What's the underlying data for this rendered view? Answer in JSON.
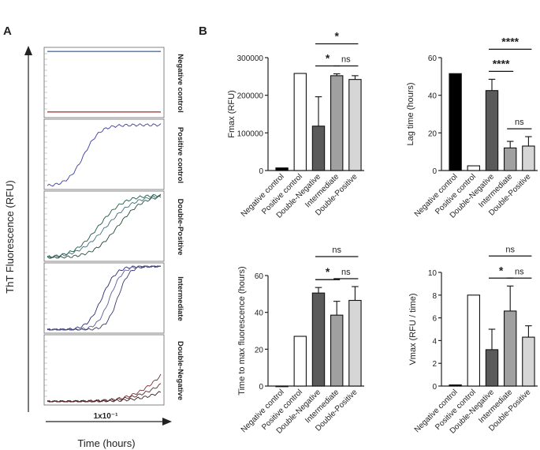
{
  "figure": {
    "panel_a_label": "A",
    "panel_b_label": "B",
    "ylabel_a": "ThT Fluorescence (RFU)",
    "xlabel_a": "Time (hours)",
    "scale_label": "1x10⁻¹"
  },
  "panel_a": {
    "samples": [
      {
        "label": "Negative control",
        "curve_colors": [
          "#b03a3a",
          "#4a6fb0"
        ]
      },
      {
        "label": "Positive control",
        "curve_colors": [
          "#3d3d9e"
        ]
      },
      {
        "label": "Double-Positive",
        "curve_colors": [
          "#1f5b4a",
          "#3e6e7a",
          "#244a3a"
        ]
      },
      {
        "label": "Intermediate",
        "curve_colors": [
          "#2c2c7a",
          "#5c5ca0",
          "#3a3a6a"
        ]
      },
      {
        "label": "Double-Negative",
        "curve_colors": [
          "#7a2f3a",
          "#5a2a2a",
          "#3a2020"
        ]
      }
    ]
  },
  "chart_data": [
    {
      "type": "bar",
      "id": "fmax",
      "title": "",
      "ylabel": "Fmax (RFU)",
      "categories": [
        "Negative control",
        "Positive control",
        "Double-Negative",
        "Intermediate",
        "Double-Positive"
      ],
      "values": [
        7000,
        258000,
        118000,
        252000,
        242000
      ],
      "errors": [
        0,
        0,
        78000,
        5000,
        10000
      ],
      "fills": [
        "#000000",
        "#ffffff",
        "#5a5a5a",
        "#a0a0a0",
        "#d6d6d6"
      ],
      "ylim": [
        0,
        300000
      ],
      "yticks": [
        0,
        100000,
        200000,
        300000
      ],
      "significance": [
        {
          "from": 2,
          "to": 3,
          "label": "*"
        },
        {
          "from": 3,
          "to": 4,
          "label": "ns"
        },
        {
          "from": 2,
          "to": 4,
          "label": "*"
        }
      ]
    },
    {
      "type": "bar",
      "id": "lag",
      "title": "",
      "ylabel": "Lag time (hours)",
      "categories": [
        "Negative control",
        "Positive control",
        "Double-Negative",
        "Intermediate",
        "Double-Positive"
      ],
      "values": [
        51.5,
        2.5,
        42.5,
        12,
        13
      ],
      "errors": [
        0,
        0,
        6,
        3.5,
        5
      ],
      "fills": [
        "#000000",
        "#ffffff",
        "#5a5a5a",
        "#a0a0a0",
        "#d6d6d6"
      ],
      "ylim": [
        0,
        60
      ],
      "yticks": [
        0,
        20,
        40,
        60
      ],
      "significance": [
        {
          "from": 2,
          "to": 3,
          "label": "****"
        },
        {
          "from": 3,
          "to": 4,
          "label": "ns"
        },
        {
          "from": 2,
          "to": 4,
          "label": "****"
        }
      ]
    },
    {
      "type": "bar",
      "id": "tmax",
      "title": "",
      "ylabel": "Time to max fluorescence (hours)",
      "categories": [
        "Negative control",
        "Positive control",
        "Double-Negative",
        "Intermediate",
        "Double-Positive"
      ],
      "values": [
        0,
        27,
        50.5,
        38.5,
        46.5
      ],
      "errors": [
        0,
        0,
        3,
        7.5,
        7.5
      ],
      "fills": [
        "#000000",
        "#ffffff",
        "#5a5a5a",
        "#a0a0a0",
        "#d6d6d6"
      ],
      "ylim": [
        0,
        60
      ],
      "yticks": [
        0,
        20,
        40,
        60
      ],
      "significance": [
        {
          "from": 2,
          "to": 3,
          "label": "*"
        },
        {
          "from": 3,
          "to": 4,
          "label": "ns"
        },
        {
          "from": 2,
          "to": 4,
          "label": "ns"
        }
      ]
    },
    {
      "type": "bar",
      "id": "vmax",
      "title": "",
      "ylabel": "Vmax (RFU / time)",
      "categories": [
        "Negative control",
        "Positive control",
        "Double-Negative",
        "Intermediate",
        "Double-Positive"
      ],
      "values": [
        0.1,
        8.0,
        3.2,
        6.6,
        4.3
      ],
      "errors": [
        0,
        0,
        1.8,
        2.2,
        1.0
      ],
      "fills": [
        "#000000",
        "#ffffff",
        "#5a5a5a",
        "#a0a0a0",
        "#d6d6d6"
      ],
      "ylim": [
        0,
        10
      ],
      "yticks": [
        0,
        2,
        4,
        6,
        8,
        10
      ],
      "significance": [
        {
          "from": 2,
          "to": 3,
          "label": "*"
        },
        {
          "from": 3,
          "to": 4,
          "label": "ns"
        },
        {
          "from": 2,
          "to": 4,
          "label": "ns"
        }
      ]
    }
  ]
}
